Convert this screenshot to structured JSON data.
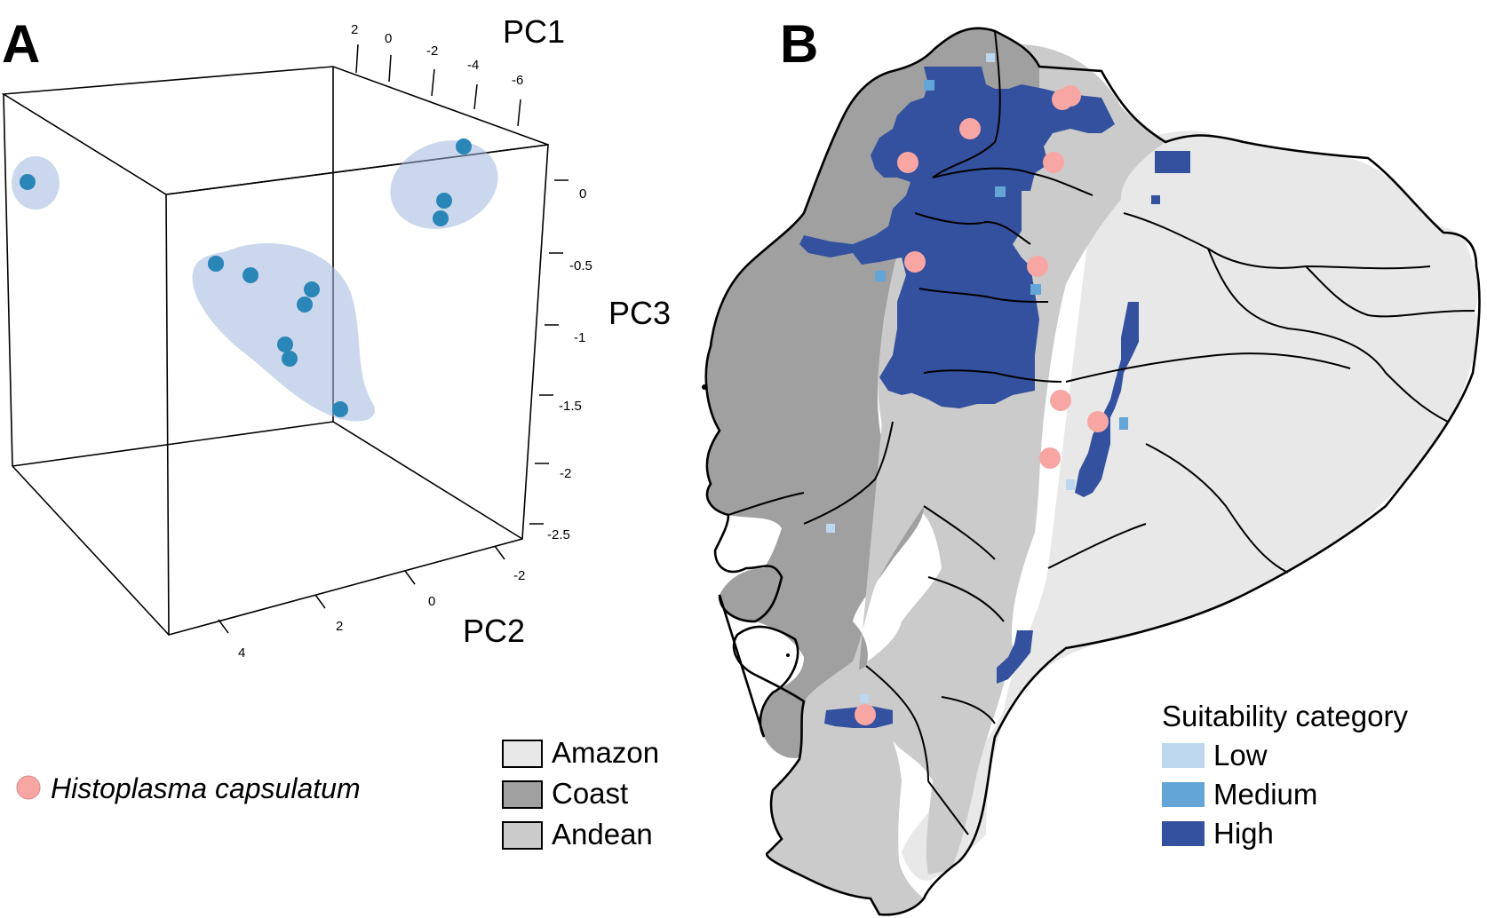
{
  "panel_a": {
    "letter": "A",
    "axes": {
      "pc1": {
        "title": "PC1",
        "ticks": [
          "2",
          "0",
          "-2",
          "-4",
          "-6"
        ]
      },
      "pc3": {
        "title": "PC3",
        "ticks": [
          "0",
          "-0.5",
          "-1",
          "-1.5",
          "-2",
          "-2.5"
        ]
      },
      "pc2": {
        "title": "PC2",
        "ticks": [
          "4",
          "2",
          "0",
          "-2"
        ]
      }
    },
    "cloud_color": "#9fb6df",
    "point_color": "#2b86b8",
    "occurrence_count": 12
  },
  "panel_b": {
    "letter": "B",
    "region_legend": [
      {
        "label": "Amazon",
        "color": "#e8e8e8"
      },
      {
        "label": "Coast",
        "color": "#a0a0a0"
      },
      {
        "label": "Andean",
        "color": "#cbcbcb"
      }
    ],
    "suitability_legend": {
      "title": "Suitability category",
      "items": [
        {
          "label": "Low",
          "color": "#bcd7ee"
        },
        {
          "label": "Medium",
          "color": "#62a5d6"
        },
        {
          "label": "High",
          "color": "#33519f"
        }
      ]
    },
    "species_legend": {
      "label": "Histoplasma capsulatum",
      "color": "#f7a6a3"
    },
    "occurrence_count": 11
  }
}
